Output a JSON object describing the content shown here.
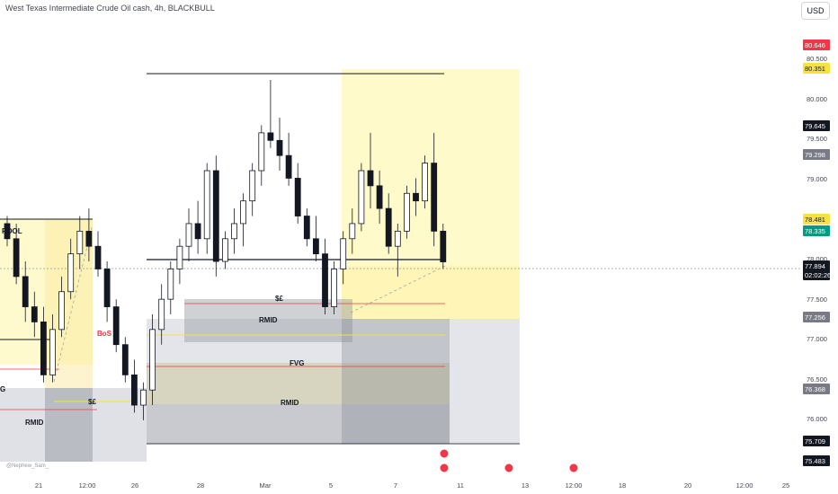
{
  "header": {
    "title": "West Texas Intermediate Crude Oil cash, 4h, BLACKBULL",
    "currency_button": "USD",
    "credit": "@Nephew_Sam_"
  },
  "chart_data": {
    "type": "candlestick",
    "symbol": "West Texas Intermediate Crude Oil cash",
    "interval": "4h",
    "broker": "BLACKBULL",
    "currency": "USD",
    "y_range": [
      75.3,
      81.0
    ],
    "grid": false,
    "price_ticks": [
      "80.500",
      "80.000",
      "79.500",
      "79.000",
      "78.000",
      "77.500",
      "77.000",
      "76.500",
      "76.000"
    ],
    "time_ticks": [
      "21",
      "12:00",
      "26",
      "28",
      "Mar",
      "5",
      "7",
      "11",
      "13",
      "12:00",
      "18",
      "20",
      "12:00",
      "25"
    ],
    "price_labels": [
      {
        "text": "80.646",
        "color": "#f23645"
      },
      {
        "text": "80.351",
        "color": "#f7e43a"
      },
      {
        "text": "79.645",
        "color": "#131722"
      },
      {
        "text": "79.298",
        "color": "#787b86"
      },
      {
        "text": "78.481",
        "color": "#f7e43a"
      },
      {
        "text": "78.335",
        "color": "#089981"
      },
      {
        "text": "77.894",
        "color": "#131722"
      },
      {
        "text": "02:02:26",
        "color": "#131722"
      },
      {
        "text": "77.256",
        "color": "#787b86"
      },
      {
        "text": "76.368",
        "color": "#787b86"
      },
      {
        "text": "75.709",
        "color": "#131722"
      },
      {
        "text": "75.483",
        "color": "#131722"
      }
    ],
    "annotations": [
      {
        "text": "POOL",
        "color": "#131722"
      },
      {
        "text": "BoS",
        "color": "#f23645"
      },
      {
        "text": "$£",
        "color": "#131722"
      },
      {
        "text": "$£",
        "color": "#131722"
      },
      {
        "text": "RMID",
        "color": "#131722"
      },
      {
        "text": "RMID",
        "color": "#131722"
      },
      {
        "text": "RMID",
        "color": "#131722"
      },
      {
        "text": "FVG",
        "color": "#131722"
      },
      {
        "text": "G",
        "color": "#131722"
      }
    ],
    "current_price": 77.894,
    "candles": [
      [
        78.4,
        78.5,
        78.1,
        78.2
      ],
      [
        78.2,
        78.4,
        77.6,
        77.7
      ],
      [
        77.7,
        77.9,
        77.1,
        77.3
      ],
      [
        77.3,
        77.5,
        76.9,
        77.1
      ],
      [
        77.1,
        77.3,
        76.3,
        76.4
      ],
      [
        76.4,
        77.2,
        76.3,
        77.0
      ],
      [
        77.0,
        77.7,
        76.9,
        77.5
      ],
      [
        77.5,
        78.2,
        77.4,
        78.0
      ],
      [
        78.0,
        78.5,
        77.8,
        78.3
      ],
      [
        78.3,
        78.6,
        77.9,
        78.1
      ],
      [
        78.1,
        78.3,
        77.7,
        77.8
      ],
      [
        77.8,
        77.9,
        77.1,
        77.3
      ],
      [
        77.3,
        77.4,
        76.7,
        76.8
      ],
      [
        76.8,
        76.9,
        76.3,
        76.4
      ],
      [
        76.4,
        76.6,
        75.9,
        76.0
      ],
      [
        76.0,
        76.3,
        75.8,
        76.2
      ],
      [
        76.2,
        77.2,
        76.0,
        77.0
      ],
      [
        77.0,
        77.6,
        76.8,
        77.4
      ],
      [
        77.4,
        77.9,
        77.2,
        77.8
      ],
      [
        77.8,
        78.2,
        77.6,
        78.1
      ],
      [
        78.1,
        78.6,
        77.9,
        78.4
      ],
      [
        78.4,
        78.7,
        78.0,
        78.2
      ],
      [
        78.2,
        79.2,
        78.0,
        79.1
      ],
      [
        79.1,
        79.3,
        77.7,
        77.9
      ],
      [
        77.9,
        78.3,
        77.8,
        78.2
      ],
      [
        78.2,
        78.6,
        78.0,
        78.4
      ],
      [
        78.4,
        78.8,
        78.1,
        78.7
      ],
      [
        78.7,
        79.2,
        78.5,
        79.1
      ],
      [
        79.1,
        79.7,
        78.9,
        79.6
      ],
      [
        79.6,
        80.3,
        79.4,
        79.5
      ],
      [
        79.5,
        79.8,
        79.1,
        79.3
      ],
      [
        79.3,
        79.6,
        78.9,
        79.0
      ],
      [
        79.0,
        79.2,
        78.4,
        78.5
      ],
      [
        78.5,
        78.6,
        78.1,
        78.2
      ],
      [
        78.2,
        78.5,
        77.9,
        78.0
      ],
      [
        78.0,
        78.2,
        77.2,
        77.3
      ],
      [
        77.3,
        77.9,
        77.2,
        77.8
      ],
      [
        77.8,
        78.3,
        77.6,
        78.2
      ],
      [
        78.2,
        78.6,
        78.0,
        78.4
      ],
      [
        78.4,
        79.2,
        78.3,
        79.1
      ],
      [
        79.1,
        79.6,
        78.6,
        78.9
      ],
      [
        78.9,
        79.1,
        78.4,
        78.6
      ],
      [
        78.6,
        78.8,
        78.0,
        78.1
      ],
      [
        78.1,
        78.4,
        77.7,
        78.3
      ],
      [
        78.3,
        78.9,
        78.2,
        78.8
      ],
      [
        78.8,
        79.0,
        78.5,
        78.7
      ],
      [
        78.7,
        79.3,
        78.6,
        79.2
      ],
      [
        79.2,
        79.6,
        78.1,
        78.3
      ],
      [
        78.3,
        78.4,
        77.8,
        77.894
      ]
    ]
  }
}
